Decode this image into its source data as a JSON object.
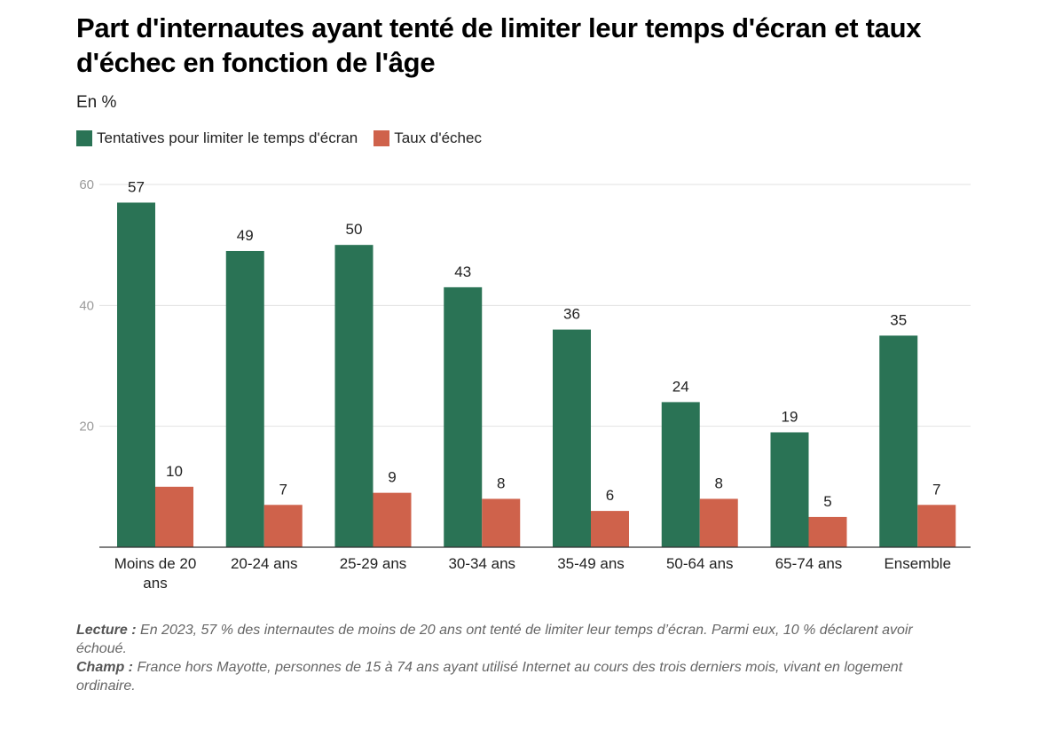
{
  "title": "Part d'internautes ayant tenté de limiter leur temps d'écran et taux d'échec en fonction de l'âge",
  "subtitle": "En %",
  "legend": [
    {
      "label": "Tentatives pour limiter le temps d'écran",
      "color": "#2a7355"
    },
    {
      "label": "Taux d'échec",
      "color": "#cf624b"
    }
  ],
  "notes": {
    "lecture_label": "Lecture :",
    "lecture_text": "En 2023, 57 % des internautes de moins de 20 ans ont tenté de limiter leur temps d’écran. Parmi eux, 10 % déclarent avoir échoué.",
    "champ_label": "Champ :",
    "champ_text": "France hors Mayotte, personnes de 15 à 74 ans ayant utilisé Internet au cours des trois derniers mois, vivant en logement ordinaire."
  },
  "chart_data": {
    "type": "bar",
    "categories": [
      [
        "Moins de 20",
        "ans"
      ],
      [
        "20-24 ans"
      ],
      [
        "25-29 ans"
      ],
      [
        "30-34 ans"
      ],
      [
        "35-49 ans"
      ],
      [
        "50-64 ans"
      ],
      [
        "65-74 ans"
      ],
      [
        "Ensemble"
      ]
    ],
    "series": [
      {
        "name": "Tentatives pour limiter le temps d'écran",
        "color": "#2a7355",
        "values": [
          57,
          49,
          50,
          43,
          36,
          24,
          19,
          35
        ]
      },
      {
        "name": "Taux d'échec",
        "color": "#cf624b",
        "values": [
          10,
          7,
          9,
          8,
          6,
          8,
          5,
          7
        ]
      }
    ],
    "ylim": [
      0,
      60
    ],
    "yticks": [
      20,
      40,
      60
    ],
    "grid": true,
    "legend_position": "top-left"
  }
}
